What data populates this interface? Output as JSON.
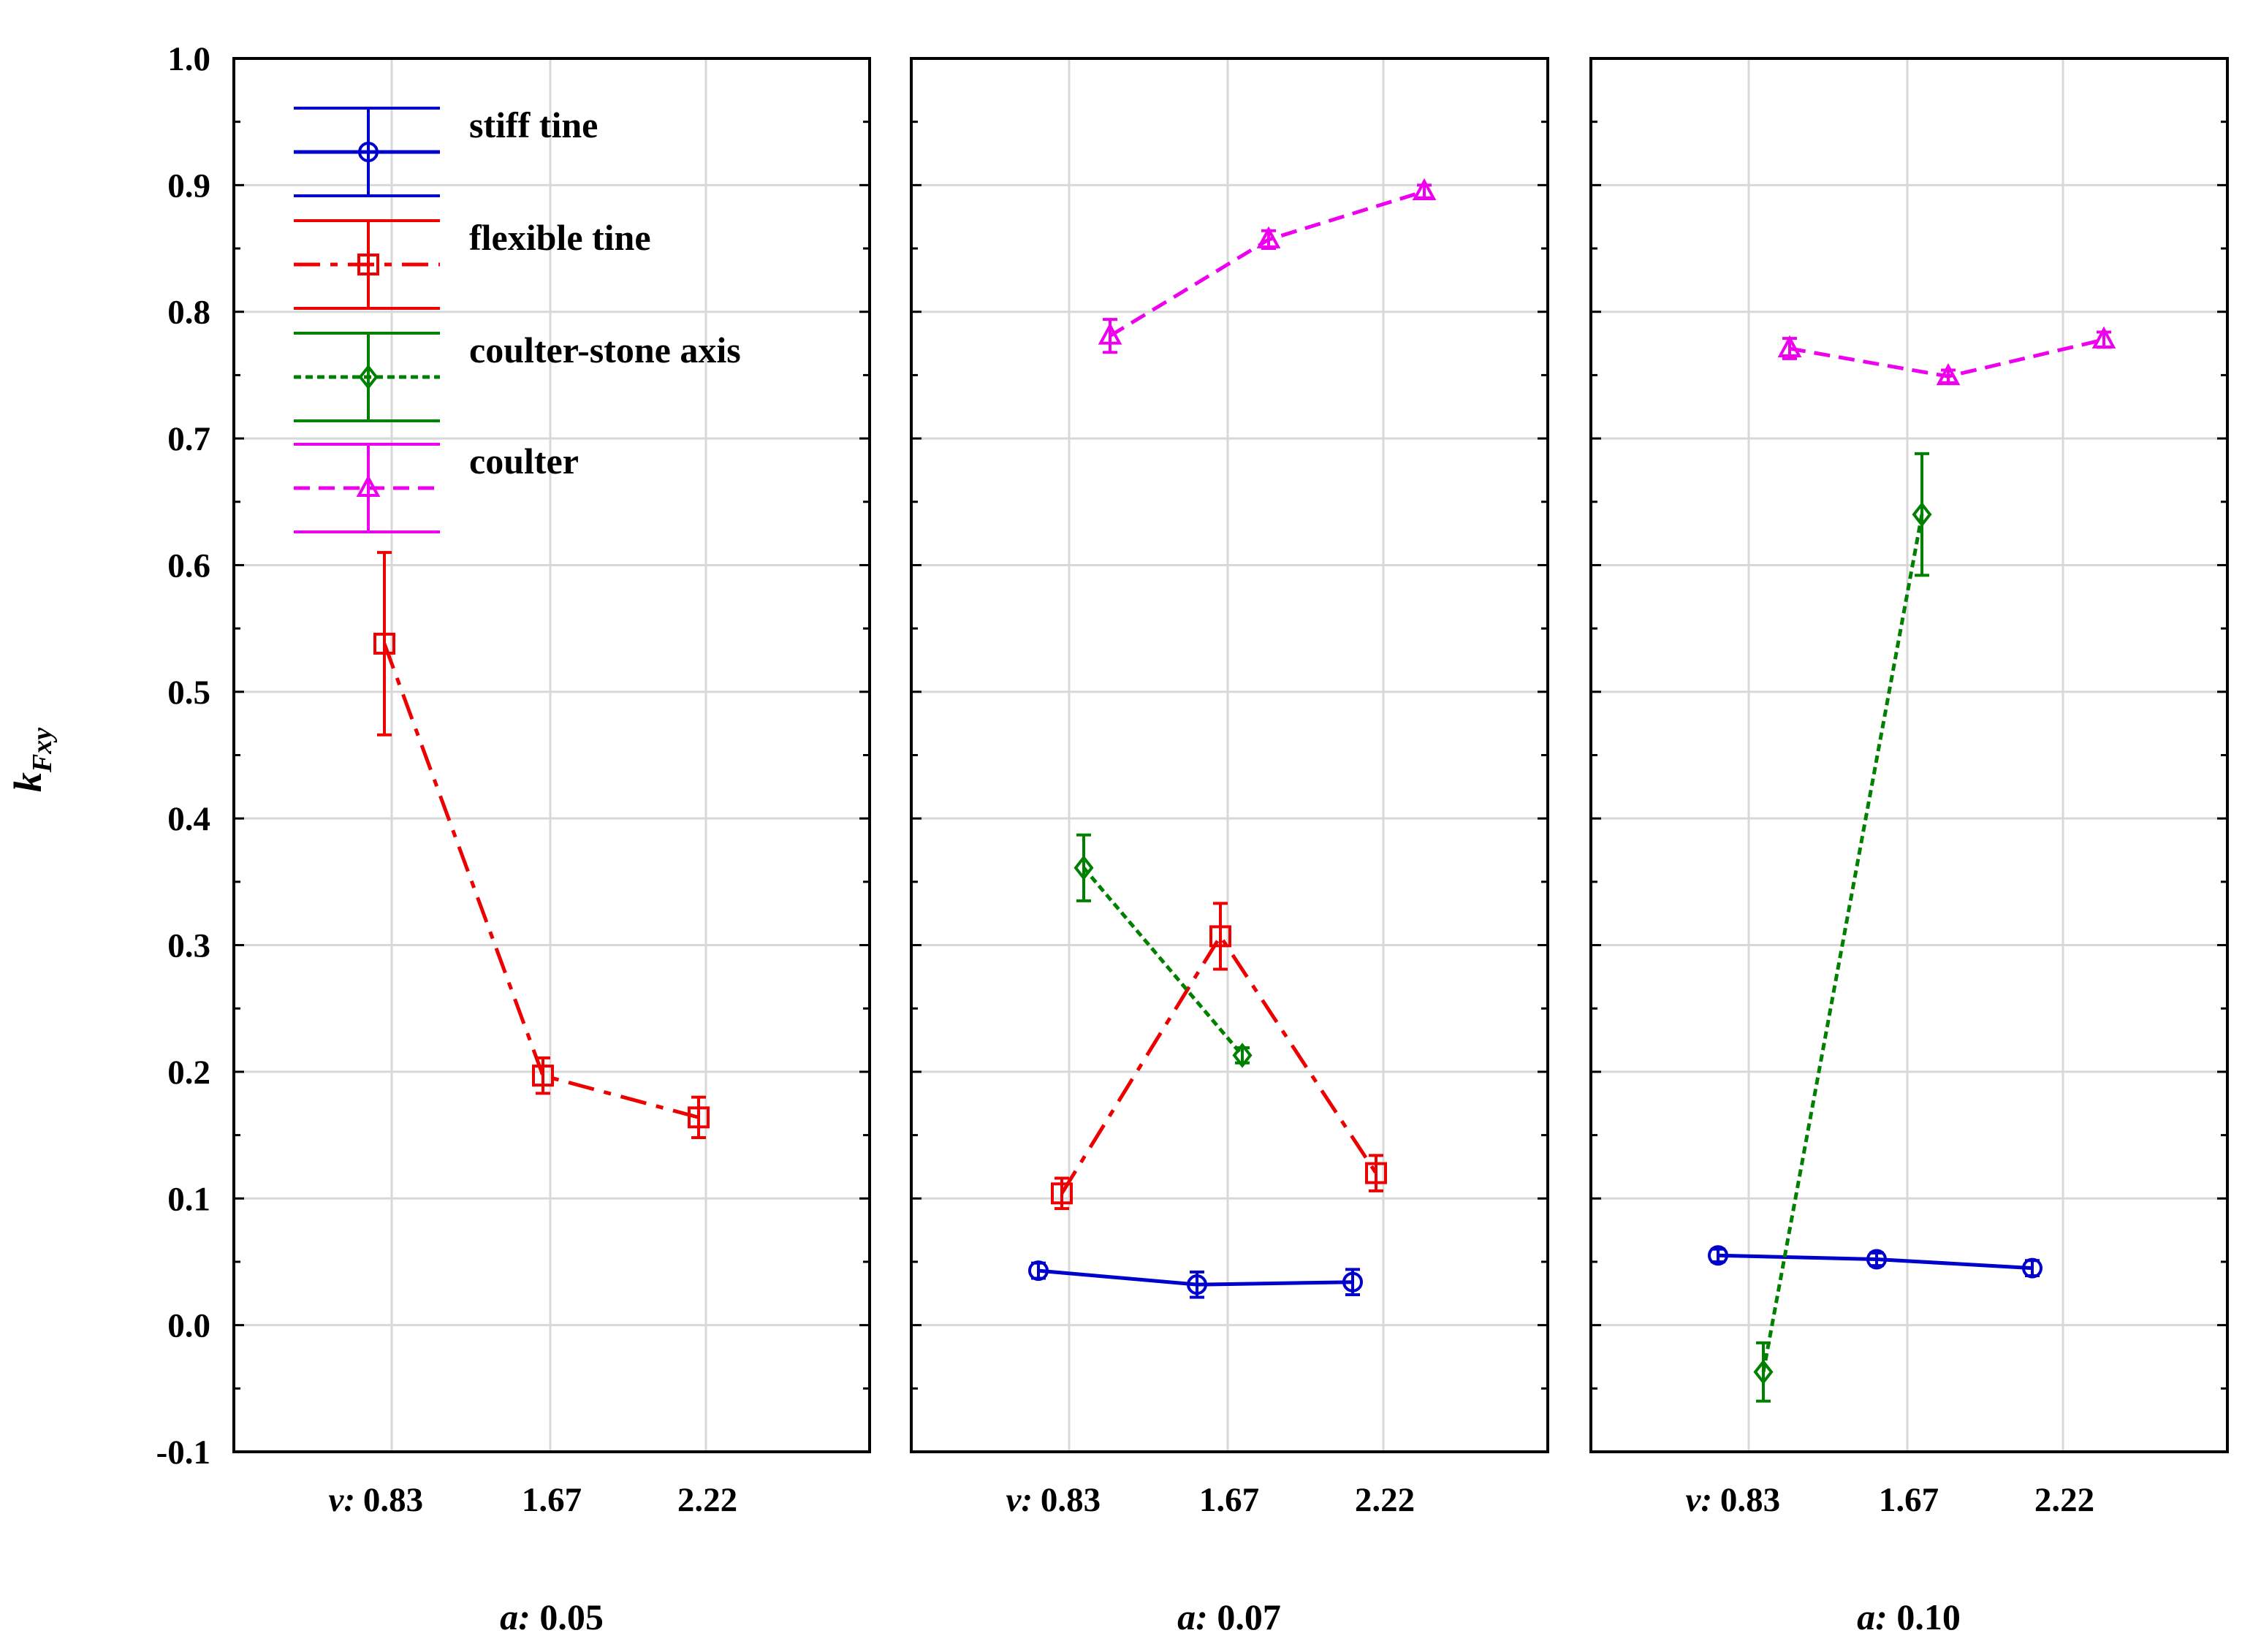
{
  "chart_data": {
    "type": "line",
    "ylabel": "k",
    "ylabel_sub": "Fxy",
    "ylim": [
      -0.1,
      1.0
    ],
    "y_ticks": [
      "1.0",
      "0.9",
      "0.8",
      "0.7",
      "0.6",
      "0.5",
      "0.4",
      "0.3",
      "0.2",
      "0.1",
      "0.0",
      "-0.1"
    ],
    "x_prefix": "v:",
    "x_categories": [
      "0.83",
      "1.67",
      "2.22"
    ],
    "panels": [
      {
        "label": "a: 0.05",
        "series": [
          {
            "name": "flexible tine",
            "x": [
              0.83,
              1.67,
              2.22
            ],
            "values": [
              0.538,
              0.197,
              0.164
            ],
            "err": [
              0.072,
              0.014,
              0.016
            ]
          }
        ]
      },
      {
        "label": "a: 0.07",
        "series": [
          {
            "name": "stiff tine",
            "x": [
              0.83,
              1.67,
              2.22
            ],
            "values": [
              0.043,
              0.032,
              0.034
            ],
            "err": [
              0.006,
              0.01,
              0.01
            ]
          },
          {
            "name": "flexible tine",
            "x": [
              0.83,
              1.67,
              2.22
            ],
            "values": [
              0.104,
              0.307,
              0.12
            ],
            "err": [
              0.012,
              0.026,
              0.014
            ]
          },
          {
            "name": "coulter-stone axis",
            "x": [
              0.83,
              1.67
            ],
            "values": [
              0.361,
              0.213
            ],
            "err": [
              0.026,
              0.006
            ]
          },
          {
            "name": "coulter",
            "x": [
              0.83,
              1.67,
              2.22
            ],
            "values": [
              0.781,
              0.857,
              0.895
            ],
            "err": [
              0.013,
              0.007,
              0.005
            ]
          }
        ]
      },
      {
        "label": "a: 0.10",
        "series": [
          {
            "name": "stiff tine",
            "x": [
              0.83,
              1.67,
              2.22
            ],
            "values": [
              0.055,
              0.052,
              0.045
            ],
            "err": [
              0.005,
              0.005,
              0.006
            ]
          },
          {
            "name": "coulter-stone axis",
            "x": [
              0.83,
              1.67
            ],
            "values": [
              -0.037,
              0.64
            ],
            "err": [
              0.023,
              0.048
            ]
          },
          {
            "name": "coulter",
            "x": [
              0.83,
              1.67,
              2.22
            ],
            "values": [
              0.771,
              0.749,
              0.778
            ],
            "err": [
              0.008,
              0.005,
              0.006
            ]
          }
        ]
      }
    ],
    "legend": [
      {
        "name": "stiff tine",
        "color": "#0000cc",
        "marker": "circle",
        "dash": "solid"
      },
      {
        "name": "flexible tine",
        "color": "#ee0000",
        "marker": "square",
        "dash": "long-dash"
      },
      {
        "name": "coulter-stone axis",
        "color": "#008000",
        "marker": "diamond",
        "dash": "dotted"
      },
      {
        "name": "coulter",
        "color": "#ee00ee",
        "marker": "triangle",
        "dash": "dashed"
      }
    ]
  }
}
